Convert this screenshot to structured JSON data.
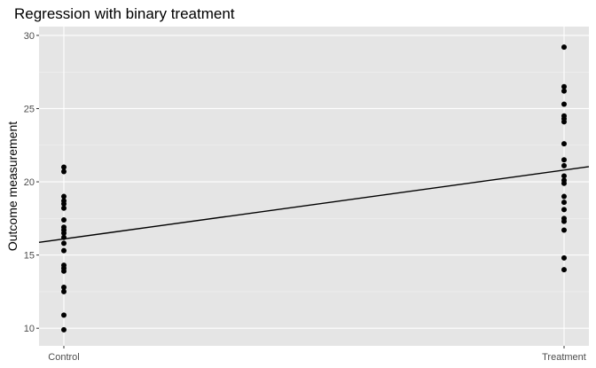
{
  "chart_data": {
    "type": "scatter",
    "title": "Regression with binary treatment",
    "xlabel": "",
    "ylabel": "Outcome measurement",
    "categories": [
      "Control",
      "Treatment"
    ],
    "yticks": [
      10,
      15,
      20,
      25,
      30
    ],
    "ylim": [
      8.8,
      30.6
    ],
    "grid": true,
    "series": [
      {
        "category": "Control",
        "values": [
          21.0,
          20.7,
          19.0,
          18.7,
          18.5,
          18.2,
          17.4,
          16.9,
          16.7,
          16.5,
          16.2,
          15.8,
          15.3,
          14.3,
          14.1,
          13.9,
          12.8,
          12.5,
          10.9,
          9.9
        ]
      },
      {
        "category": "Treatment",
        "values": [
          29.2,
          26.5,
          26.2,
          25.3,
          24.5,
          24.3,
          24.1,
          22.6,
          21.5,
          21.1,
          20.4,
          20.1,
          19.9,
          19.0,
          18.6,
          18.1,
          17.5,
          17.3,
          16.7,
          14.8,
          14.0
        ]
      }
    ],
    "regression_line": {
      "intercept": 16.1,
      "slope": 4.7
    },
    "point_color": "#000000",
    "panel_color": "#e5e5e5"
  }
}
